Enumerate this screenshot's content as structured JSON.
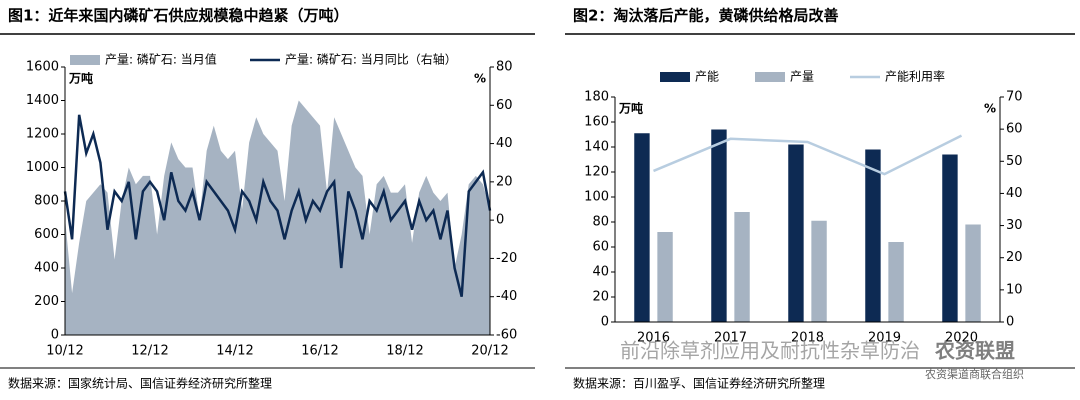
{
  "chart_data": [
    {
      "type": "combo",
      "title": "图1：近年来国内磷矿石供应规模稳中趋紧（万吨）",
      "source": "数据来源：国家统计局、国信证券经济研究所整理",
      "y_unit": "万吨",
      "y2_unit": "%",
      "ylim": [
        0,
        1600
      ],
      "yticks": [
        0,
        200,
        400,
        600,
        800,
        1000,
        1200,
        1400,
        1600
      ],
      "y2lim": [
        -60,
        80
      ],
      "y2ticks": [
        -60,
        -40,
        -20,
        0,
        20,
        40,
        60,
        80
      ],
      "categories": [
        "10/12",
        null,
        null,
        null,
        null,
        null,
        null,
        null,
        null,
        null,
        null,
        null,
        "12/12",
        null,
        null,
        null,
        null,
        null,
        null,
        null,
        null,
        null,
        null,
        null,
        "14/12",
        null,
        null,
        null,
        null,
        null,
        null,
        null,
        null,
        null,
        null,
        null,
        "16/12",
        null,
        null,
        null,
        null,
        null,
        null,
        null,
        null,
        null,
        null,
        null,
        "18/12",
        null,
        null,
        null,
        null,
        null,
        null,
        null,
        null,
        null,
        null,
        null,
        "20/12"
      ],
      "series": [
        {
          "name": "产量: 磷矿石: 当月值",
          "type": "area",
          "color": "#a6b3c2",
          "values": [
            700,
            250,
            550,
            800,
            850,
            900,
            850,
            450,
            800,
            1000,
            900,
            950,
            950,
            600,
            950,
            1150,
            1050,
            1000,
            1000,
            700,
            1100,
            1250,
            1100,
            1050,
            1100,
            750,
            1150,
            1300,
            1200,
            1150,
            1100,
            800,
            1250,
            1400,
            1350,
            1300,
            1250,
            850,
            1300,
            1200,
            1100,
            1000,
            950,
            600,
            900,
            950,
            850,
            850,
            900,
            550,
            850,
            950,
            850,
            800,
            850,
            400,
            600,
            900,
            950,
            900,
            750
          ]
        },
        {
          "name": "产量: 磷矿石: 当月同比（右轴）",
          "type": "line",
          "axis": "y2",
          "color": "#0d2a53",
          "values": [
            15,
            -10,
            55,
            35,
            45,
            30,
            -5,
            15,
            10,
            20,
            -10,
            15,
            20,
            15,
            0,
            25,
            10,
            5,
            15,
            0,
            20,
            15,
            10,
            5,
            -5,
            15,
            10,
            0,
            20,
            10,
            5,
            -10,
            5,
            15,
            0,
            10,
            5,
            15,
            20,
            -25,
            15,
            5,
            -10,
            10,
            5,
            15,
            0,
            5,
            10,
            -5,
            10,
            0,
            5,
            -10,
            5,
            -25,
            -40,
            15,
            20,
            25,
            5
          ]
        }
      ]
    },
    {
      "type": "combo",
      "title": "图2：淘汰落后产能，黄磷供给格局改善",
      "source": "数据来源：百川盈孚、国信证券经济研究所整理",
      "y_unit": "万吨",
      "y2_unit": "%",
      "ylim": [
        0,
        180
      ],
      "yticks": [
        0,
        20,
        40,
        60,
        80,
        100,
        120,
        140,
        160,
        180
      ],
      "y2lim": [
        0,
        70
      ],
      "y2ticks": [
        0,
        10,
        20,
        30,
        40,
        50,
        60,
        70
      ],
      "categories": [
        "2016",
        "2017",
        "2018",
        "2019",
        "2020"
      ],
      "series": [
        {
          "name": "产能",
          "type": "bar",
          "color": "#0d2a53",
          "values": [
            151,
            154,
            142,
            138,
            134
          ]
        },
        {
          "name": "产量",
          "type": "bar",
          "color": "#a6b3c2",
          "values": [
            72,
            88,
            81,
            64,
            78
          ]
        },
        {
          "name": "产能利用率",
          "type": "line",
          "axis": "y2",
          "color": "#b8cde0",
          "values": [
            47,
            57,
            56,
            46,
            58
          ]
        }
      ]
    }
  ],
  "watermark": {
    "text": "前沿除草剂应用及耐抗性杂草防治",
    "logo": "农资联盟",
    "logo_sub": "农资渠道商联合组织"
  }
}
